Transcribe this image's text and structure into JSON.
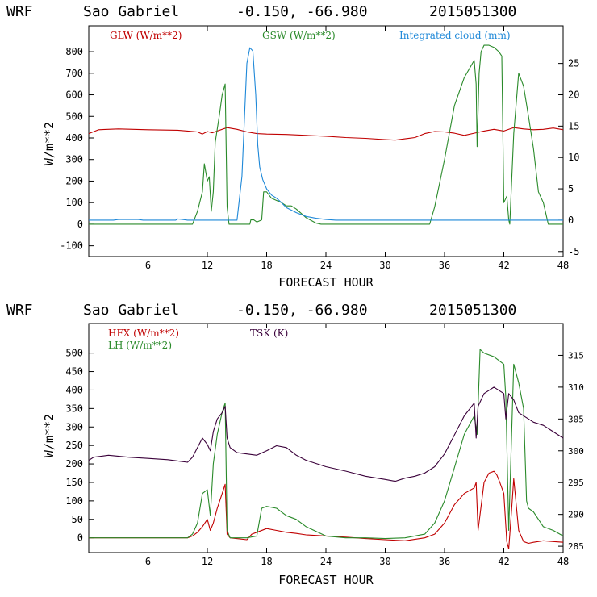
{
  "chart_data": [
    {
      "type": "line",
      "header": {
        "model": "WRF",
        "station": "Sao Gabriel",
        "coords": "-0.150, -66.980",
        "init": "2015051300"
      },
      "xlabel": "FORECAST HOUR",
      "ylabel": "W/m**2",
      "xlim": [
        0,
        48
      ],
      "x_ticks": [
        6,
        12,
        18,
        24,
        30,
        36,
        42,
        48
      ],
      "ylim": [
        -150,
        920
      ],
      "y_ticks": [
        -100,
        0,
        100,
        200,
        300,
        400,
        500,
        600,
        700,
        800
      ],
      "y2lim": [
        -5.8,
        31
      ],
      "y2_ticks": [
        -5,
        0,
        5,
        10,
        15,
        20,
        25
      ],
      "series": [
        {
          "name": "GLW (W/m**2)",
          "axis": "left",
          "color": "#c00000",
          "x": [
            0,
            1,
            3,
            6,
            9,
            10,
            11,
            11.5,
            12,
            12.5,
            13,
            14,
            15,
            16,
            17,
            18,
            20,
            22,
            24,
            26,
            28,
            30,
            31,
            32,
            33,
            34,
            35,
            36,
            37,
            38,
            39,
            40,
            41,
            42,
            43,
            44,
            45,
            46,
            47,
            48
          ],
          "y": [
            420,
            438,
            442,
            438,
            436,
            432,
            428,
            418,
            430,
            424,
            432,
            448,
            440,
            428,
            420,
            418,
            416,
            412,
            408,
            402,
            398,
            392,
            390,
            396,
            402,
            420,
            430,
            428,
            422,
            412,
            422,
            432,
            440,
            432,
            448,
            442,
            438,
            440,
            446,
            438
          ]
        },
        {
          "name": "GSW (W/m**2)",
          "axis": "left",
          "color": "#2a8a2a",
          "x": [
            0,
            10.5,
            11,
            11.5,
            11.7,
            12,
            12.2,
            12.4,
            12.6,
            12.8,
            13.2,
            13.5,
            13.8,
            14,
            14.2,
            16.3,
            16.4,
            16.7,
            17,
            17.5,
            17.7,
            18,
            18.5,
            19,
            19.5,
            20,
            20.5,
            21,
            22,
            23,
            23.5,
            34.5,
            35,
            36,
            37,
            38,
            39,
            39.2,
            39.3,
            39.5,
            39.7,
            40,
            40.5,
            41,
            41.5,
            41.8,
            42,
            42.3,
            42.5,
            42.6,
            43,
            43.5,
            44,
            44.5,
            45,
            45.5,
            46,
            46.5,
            48
          ],
          "y": [
            0,
            0,
            60,
            150,
            280,
            200,
            220,
            60,
            150,
            380,
            500,
            600,
            650,
            80,
            0,
            0,
            20,
            20,
            10,
            20,
            150,
            150,
            120,
            110,
            100,
            85,
            85,
            70,
            30,
            5,
            0,
            0,
            80,
            300,
            550,
            680,
            760,
            650,
            360,
            700,
            800,
            830,
            830,
            820,
            800,
            780,
            100,
            130,
            20,
            0,
            420,
            700,
            640,
            500,
            350,
            150,
            100,
            0,
            0
          ]
        },
        {
          "name": "Integrated cloud (mm)",
          "axis": "right",
          "color": "#1e88d8",
          "x": [
            0,
            2.5,
            3,
            5,
            5.5,
            8.8,
            9,
            9.5,
            10,
            15,
            15.5,
            15.8,
            16,
            16.3,
            16.6,
            16.9,
            17.1,
            17.3,
            17.6,
            18,
            18.5,
            19,
            19.5,
            20,
            21,
            22,
            23,
            24,
            25,
            48
          ],
          "y": [
            0,
            0,
            0.1,
            0.1,
            0,
            0,
            0.2,
            0.1,
            0,
            0,
            7,
            18,
            25,
            27.5,
            27,
            20,
            12,
            8.5,
            6.5,
            5,
            4,
            3.5,
            2.8,
            2,
            1.2,
            0.6,
            0.3,
            0.1,
            0,
            0
          ]
        }
      ]
    },
    {
      "type": "line",
      "header": {
        "model": "WRF",
        "station": "Sao Gabriel",
        "coords": "-0.150, -66.980",
        "init": "2015051300"
      },
      "xlabel": "FORECAST HOUR",
      "ylabel": "W/m**2",
      "xlim": [
        0,
        48
      ],
      "x_ticks": [
        6,
        12,
        18,
        24,
        30,
        36,
        42,
        48
      ],
      "ylim": [
        -40,
        580
      ],
      "y_ticks": [
        0,
        50,
        100,
        150,
        200,
        250,
        300,
        350,
        400,
        450,
        500
      ],
      "y2lim": [
        284,
        320
      ],
      "y2_ticks": [
        285,
        290,
        295,
        300,
        305,
        310,
        315
      ],
      "series": [
        {
          "name": "HFX (W/m**2)",
          "axis": "left",
          "color": "#c00000",
          "x": [
            0,
            6,
            10,
            10.5,
            11,
            11.5,
            12,
            12.3,
            12.6,
            13,
            13.5,
            13.8,
            14,
            14.3,
            16,
            16.5,
            17,
            18,
            19,
            20,
            21,
            22,
            24,
            26,
            28,
            30,
            32,
            34,
            35,
            36,
            37,
            38,
            39,
            39.2,
            39.4,
            40,
            40.5,
            41,
            41.3,
            41.6,
            42,
            42.3,
            42.5,
            42.8,
            43,
            43.5,
            44,
            44.5,
            45,
            46,
            47,
            48
          ],
          "y": [
            0,
            0,
            0,
            5,
            15,
            30,
            50,
            20,
            40,
            80,
            120,
            145,
            10,
            0,
            -5,
            10,
            15,
            25,
            20,
            15,
            12,
            8,
            5,
            2,
            -2,
            -5,
            -8,
            0,
            10,
            40,
            90,
            120,
            135,
            150,
            20,
            150,
            175,
            180,
            170,
            150,
            120,
            -10,
            -30,
            80,
            160,
            20,
            -10,
            -15,
            -12,
            -8,
            -10,
            -12
          ]
        },
        {
          "name": "LH (W/m**2)",
          "axis": "left",
          "color": "#2a8a2a",
          "x": [
            0,
            8,
            10,
            10.5,
            11,
            11.5,
            12,
            12.3,
            12.6,
            13,
            13.5,
            13.8,
            14,
            14.3,
            16,
            17,
            17.5,
            18,
            19,
            20,
            21,
            22,
            24,
            26,
            28,
            30,
            32,
            34,
            35,
            36,
            37,
            38,
            39,
            39.3,
            39.6,
            40,
            41,
            42,
            42.2,
            42.5,
            43,
            43.5,
            44,
            44.3,
            44.5,
            45,
            46,
            47,
            48
          ],
          "y": [
            0,
            0,
            0,
            10,
            40,
            120,
            130,
            60,
            200,
            280,
            340,
            365,
            20,
            0,
            0,
            5,
            80,
            85,
            80,
            60,
            50,
            30,
            5,
            0,
            0,
            -2,
            0,
            10,
            40,
            100,
            190,
            280,
            330,
            280,
            510,
            500,
            490,
            470,
            380,
            20,
            470,
            420,
            350,
            100,
            80,
            70,
            30,
            20,
            5
          ]
        },
        {
          "name": "TSK (K)",
          "axis": "right",
          "color": "#3a003a",
          "x": [
            0,
            0.5,
            2,
            4,
            6,
            8,
            9,
            10,
            10.5,
            11,
            11.5,
            12,
            12.3,
            12.6,
            13,
            13.5,
            13.8,
            14,
            14.3,
            15,
            16,
            17,
            18,
            19,
            20,
            21,
            22,
            24,
            26,
            28,
            30,
            31,
            32,
            33,
            34,
            35,
            36,
            37,
            38,
            39,
            39.2,
            39.4,
            40,
            41,
            42,
            42.2,
            42.5,
            43,
            43.5,
            44,
            44.5,
            45,
            46,
            47,
            48
          ],
          "y": [
            298.5,
            299,
            299.3,
            299,
            298.8,
            298.6,
            298.4,
            298.2,
            299,
            300.5,
            302,
            301,
            300,
            303,
            305,
            306,
            307,
            302,
            300.5,
            299.7,
            299.5,
            299.3,
            300,
            300.8,
            300.5,
            299.3,
            298.5,
            297.5,
            296.8,
            296,
            295.5,
            295.2,
            295.7,
            296,
            296.5,
            297.5,
            299.5,
            302.5,
            305.5,
            307.5,
            302,
            307,
            309,
            310,
            309,
            305,
            309,
            308,
            306,
            305.5,
            305,
            304.5,
            304,
            303,
            302
          ]
        }
      ]
    }
  ]
}
